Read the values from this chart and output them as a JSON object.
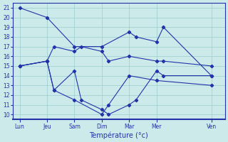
{
  "xlabel": "Température (°c)",
  "background_color": "#cceaea",
  "grid_color": "#99cccc",
  "line_color": "#2233aa",
  "ylim": [
    9.5,
    21.5
  ],
  "yticks": [
    10,
    11,
    12,
    13,
    14,
    15,
    16,
    17,
    18,
    19,
    20,
    21
  ],
  "xtick_labels": [
    "Lun",
    "Jeu",
    "Sam",
    "Dim",
    "Mar",
    "Mer",
    "Ven"
  ],
  "xtick_positions": [
    0,
    2,
    4,
    6,
    8,
    10,
    14
  ],
  "xlim": [
    -0.5,
    15.0
  ],
  "series": [
    {
      "x": [
        0,
        2,
        4,
        6,
        8,
        8.5,
        10,
        10.5,
        14
      ],
      "y": [
        21,
        20,
        17,
        17,
        18.5,
        18,
        17.5,
        19,
        14
      ]
    },
    {
      "x": [
        0,
        2,
        2.5,
        4,
        4.5,
        6,
        6.5,
        8,
        10,
        10.5,
        14
      ],
      "y": [
        15,
        15.5,
        17,
        16.5,
        17,
        16.5,
        15.5,
        16,
        15.5,
        15.5,
        15
      ]
    },
    {
      "x": [
        0,
        2,
        2.5,
        4,
        4.5,
        6,
        6.5,
        8,
        8.5,
        10,
        10.5,
        14
      ],
      "y": [
        15,
        15.5,
        12.5,
        14.5,
        11.5,
        10.5,
        10,
        11,
        11.5,
        14.5,
        14,
        14
      ]
    },
    {
      "x": [
        0,
        2,
        2.5,
        4,
        6,
        6.5,
        8,
        10,
        14
      ],
      "y": [
        15,
        15.5,
        12.5,
        11.5,
        10,
        11,
        14,
        13.5,
        13
      ]
    }
  ]
}
